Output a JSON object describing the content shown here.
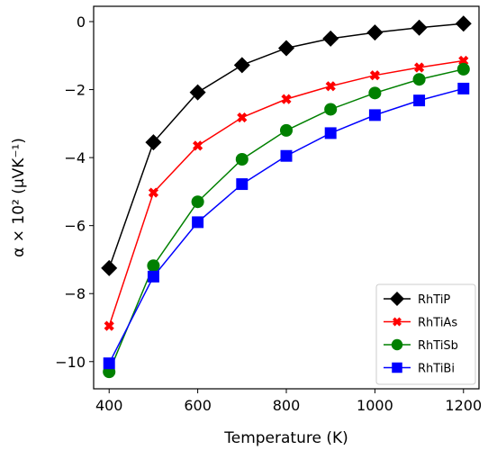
{
  "chart_data": {
    "type": "line",
    "xlabel": "Temperature (K)",
    "ylabel": "α × 10² (μVK⁻¹)",
    "xlim": [
      365,
      1235
    ],
    "ylim": [
      -10.8,
      0.45
    ],
    "xticks": [
      400,
      600,
      800,
      1000,
      1200
    ],
    "yticks": [
      0,
      -2,
      -4,
      -6,
      -8,
      -10
    ],
    "ytick_labels": [
      "0",
      "−2",
      "−4",
      "−6",
      "−8",
      "−10"
    ],
    "grid": false,
    "legend_position": "lower-right",
    "x": [
      400,
      500,
      600,
      700,
      800,
      900,
      1000,
      1100,
      1200
    ],
    "series": [
      {
        "name": "RhTiP",
        "color": "#000000",
        "marker": "diamond",
        "values": [
          -7.25,
          -3.55,
          -2.08,
          -1.28,
          -0.78,
          -0.5,
          -0.32,
          -0.18,
          -0.06
        ]
      },
      {
        "name": "RhTiAs",
        "color": "#ff0000",
        "marker": "x",
        "values": [
          -8.95,
          -5.03,
          -3.65,
          -2.82,
          -2.28,
          -1.9,
          -1.58,
          -1.35,
          -1.15
        ]
      },
      {
        "name": "RhTiSb",
        "color": "#008000",
        "marker": "circle",
        "values": [
          -10.3,
          -7.18,
          -5.3,
          -4.05,
          -3.2,
          -2.58,
          -2.1,
          -1.7,
          -1.4
        ]
      },
      {
        "name": "RhTiBi",
        "color": "#0000ff",
        "marker": "square",
        "values": [
          -10.05,
          -7.5,
          -5.9,
          -4.78,
          -3.95,
          -3.28,
          -2.75,
          -2.32,
          -1.97
        ]
      }
    ]
  }
}
